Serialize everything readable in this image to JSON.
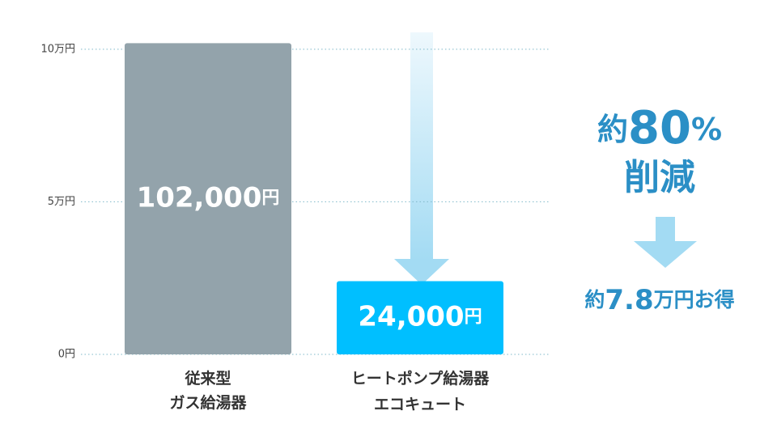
{
  "chart_data": {
    "type": "bar",
    "categories": [
      "従来型\nガス給湯器",
      "ヒートポンプ給湯器\nエコキュート"
    ],
    "values": [
      102000,
      24000
    ],
    "value_labels": [
      "102,000円",
      "24,000円"
    ],
    "colors": [
      "#93a3ab",
      "#00bfff"
    ],
    "ylim": [
      0,
      105000
    ],
    "yticks": [
      {
        "value": 0,
        "label": "0円"
      },
      {
        "value": 50000,
        "label": "5万円"
      },
      {
        "value": 100000,
        "label": "10万円"
      }
    ],
    "grid": true,
    "annotations": [
      "約80%",
      "削減",
      "約7.8万円お得"
    ]
  }
}
